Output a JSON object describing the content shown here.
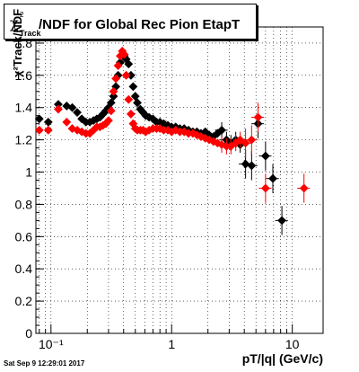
{
  "title": {
    "prefix": "χ",
    "sup": "2",
    "sub": "Track",
    "text": "/NDF for Global Rec Pion EtapT"
  },
  "ylabel": "χ²Track/NDF",
  "xlabel": "pT/|q| (GeV/c)",
  "timestamp": "Sat Sep  9 12:29:01 2017",
  "colors": {
    "black_series": "#000000",
    "red_series": "#ff0000",
    "grid": "#000000"
  },
  "chart_data": {
    "type": "scatter",
    "xscale": "log",
    "xlim": [
      0.075,
      18
    ],
    "ylim": [
      0,
      1.9
    ],
    "grid": true,
    "yticks": [
      0,
      0.2,
      0.4,
      0.6,
      0.8,
      1,
      1.2,
      1.4,
      1.6,
      1.8
    ],
    "ytick_labels": [
      "0",
      "0.2",
      "0.4",
      "0.6",
      "0.8",
      "1",
      "1.2",
      "1.4",
      "1.6",
      "1.8"
    ],
    "xticks_major": [
      0.1,
      1,
      10
    ],
    "xtick_labels": [
      "10⁻¹",
      "1",
      "10"
    ],
    "series": [
      {
        "color": "#000000",
        "points": [
          {
            "x": 0.08,
            "y": 1.33
          },
          {
            "x": 0.095,
            "y": 1.31
          },
          {
            "x": 0.115,
            "y": 1.42
          },
          {
            "x": 0.135,
            "y": 1.41
          },
          {
            "x": 0.15,
            "y": 1.4
          },
          {
            "x": 0.165,
            "y": 1.37
          },
          {
            "x": 0.18,
            "y": 1.33
          },
          {
            "x": 0.195,
            "y": 1.31
          },
          {
            "x": 0.21,
            "y": 1.31
          },
          {
            "x": 0.225,
            "y": 1.32
          },
          {
            "x": 0.24,
            "y": 1.33
          },
          {
            "x": 0.255,
            "y": 1.34
          },
          {
            "x": 0.27,
            "y": 1.36
          },
          {
            "x": 0.285,
            "y": 1.38
          },
          {
            "x": 0.3,
            "y": 1.4
          },
          {
            "x": 0.315,
            "y": 1.43
          },
          {
            "x": 0.33,
            "y": 1.47
          },
          {
            "x": 0.345,
            "y": 1.53
          },
          {
            "x": 0.36,
            "y": 1.6
          },
          {
            "x": 0.375,
            "y": 1.68
          },
          {
            "x": 0.39,
            "y": 1.73
          },
          {
            "x": 0.405,
            "y": 1.72
          },
          {
            "x": 0.42,
            "y": 1.7
          },
          {
            "x": 0.44,
            "y": 1.67
          },
          {
            "x": 0.46,
            "y": 1.6
          },
          {
            "x": 0.48,
            "y": 1.53
          },
          {
            "x": 0.5,
            "y": 1.47
          },
          {
            "x": 0.52,
            "y": 1.43
          },
          {
            "x": 0.55,
            "y": 1.39
          },
          {
            "x": 0.58,
            "y": 1.37
          },
          {
            "x": 0.61,
            "y": 1.35
          },
          {
            "x": 0.65,
            "y": 1.34
          },
          {
            "x": 0.7,
            "y": 1.33
          },
          {
            "x": 0.75,
            "y": 1.31
          },
          {
            "x": 0.8,
            "y": 1.31
          },
          {
            "x": 0.86,
            "y": 1.3
          },
          {
            "x": 0.93,
            "y": 1.29
          },
          {
            "x": 1.0,
            "y": 1.28
          },
          {
            "x": 1.08,
            "y": 1.28
          },
          {
            "x": 1.17,
            "y": 1.27
          },
          {
            "x": 1.27,
            "y": 1.27
          },
          {
            "x": 1.38,
            "y": 1.26
          },
          {
            "x": 1.5,
            "y": 1.25
          },
          {
            "x": 1.62,
            "y": 1.25
          },
          {
            "x": 1.75,
            "y": 1.24
          },
          {
            "x": 1.9,
            "y": 1.25
          },
          {
            "x": 2.05,
            "y": 1.23
          },
          {
            "x": 2.22,
            "y": 1.22
          },
          {
            "x": 2.4,
            "y": 1.24
          },
          {
            "x": 2.6,
            "y": 1.26
          },
          {
            "x": 2.85,
            "y": 1.2
          },
          {
            "x": 3.1,
            "y": 1.18
          },
          {
            "x": 3.4,
            "y": 1.2
          },
          {
            "x": 3.7,
            "y": 1.17
          },
          {
            "x": 4.1,
            "y": 1.05
          },
          {
            "x": 4.6,
            "y": 1.04
          },
          {
            "x": 5.2,
            "y": 1.3
          },
          {
            "x": 6.0,
            "y": 1.1
          },
          {
            "x": 6.9,
            "y": 0.96
          },
          {
            "x": 8.2,
            "y": 0.7
          }
        ]
      },
      {
        "color": "#ff0000",
        "points": [
          {
            "x": 0.08,
            "y": 1.26
          },
          {
            "x": 0.095,
            "y": 1.26
          },
          {
            "x": 0.115,
            "y": 1.39
          },
          {
            "x": 0.135,
            "y": 1.31
          },
          {
            "x": 0.15,
            "y": 1.27
          },
          {
            "x": 0.165,
            "y": 1.26
          },
          {
            "x": 0.18,
            "y": 1.25
          },
          {
            "x": 0.195,
            "y": 1.24
          },
          {
            "x": 0.21,
            "y": 1.24
          },
          {
            "x": 0.225,
            "y": 1.26
          },
          {
            "x": 0.24,
            "y": 1.28
          },
          {
            "x": 0.255,
            "y": 1.28
          },
          {
            "x": 0.27,
            "y": 1.29
          },
          {
            "x": 0.285,
            "y": 1.3
          },
          {
            "x": 0.3,
            "y": 1.32
          },
          {
            "x": 0.315,
            "y": 1.38
          },
          {
            "x": 0.33,
            "y": 1.5
          },
          {
            "x": 0.345,
            "y": 1.58
          },
          {
            "x": 0.36,
            "y": 1.66
          },
          {
            "x": 0.375,
            "y": 1.72
          },
          {
            "x": 0.39,
            "y": 1.75
          },
          {
            "x": 0.405,
            "y": 1.73
          },
          {
            "x": 0.42,
            "y": 1.6
          },
          {
            "x": 0.44,
            "y": 1.45
          },
          {
            "x": 0.46,
            "y": 1.36
          },
          {
            "x": 0.48,
            "y": 1.3
          },
          {
            "x": 0.5,
            "y": 1.27
          },
          {
            "x": 0.52,
            "y": 1.26
          },
          {
            "x": 0.55,
            "y": 1.26
          },
          {
            "x": 0.58,
            "y": 1.26
          },
          {
            "x": 0.61,
            "y": 1.25
          },
          {
            "x": 0.65,
            "y": 1.26
          },
          {
            "x": 0.7,
            "y": 1.27
          },
          {
            "x": 0.75,
            "y": 1.27
          },
          {
            "x": 0.8,
            "y": 1.27
          },
          {
            "x": 0.86,
            "y": 1.26
          },
          {
            "x": 0.93,
            "y": 1.26
          },
          {
            "x": 1.0,
            "y": 1.25
          },
          {
            "x": 1.08,
            "y": 1.26
          },
          {
            "x": 1.17,
            "y": 1.25
          },
          {
            "x": 1.27,
            "y": 1.25
          },
          {
            "x": 1.38,
            "y": 1.24
          },
          {
            "x": 1.5,
            "y": 1.24
          },
          {
            "x": 1.62,
            "y": 1.23
          },
          {
            "x": 1.75,
            "y": 1.22
          },
          {
            "x": 1.9,
            "y": 1.21
          },
          {
            "x": 2.05,
            "y": 1.2
          },
          {
            "x": 2.22,
            "y": 1.19
          },
          {
            "x": 2.4,
            "y": 1.18
          },
          {
            "x": 2.6,
            "y": 1.17
          },
          {
            "x": 2.85,
            "y": 1.16
          },
          {
            "x": 3.1,
            "y": 1.16
          },
          {
            "x": 3.4,
            "y": 1.18
          },
          {
            "x": 3.7,
            "y": 1.2
          },
          {
            "x": 4.1,
            "y": 1.18
          },
          {
            "x": 4.6,
            "y": 1.2
          },
          {
            "x": 5.2,
            "y": 1.34
          },
          {
            "x": 6.0,
            "y": 0.9
          },
          {
            "x": 12.5,
            "y": 0.9
          }
        ]
      }
    ]
  }
}
